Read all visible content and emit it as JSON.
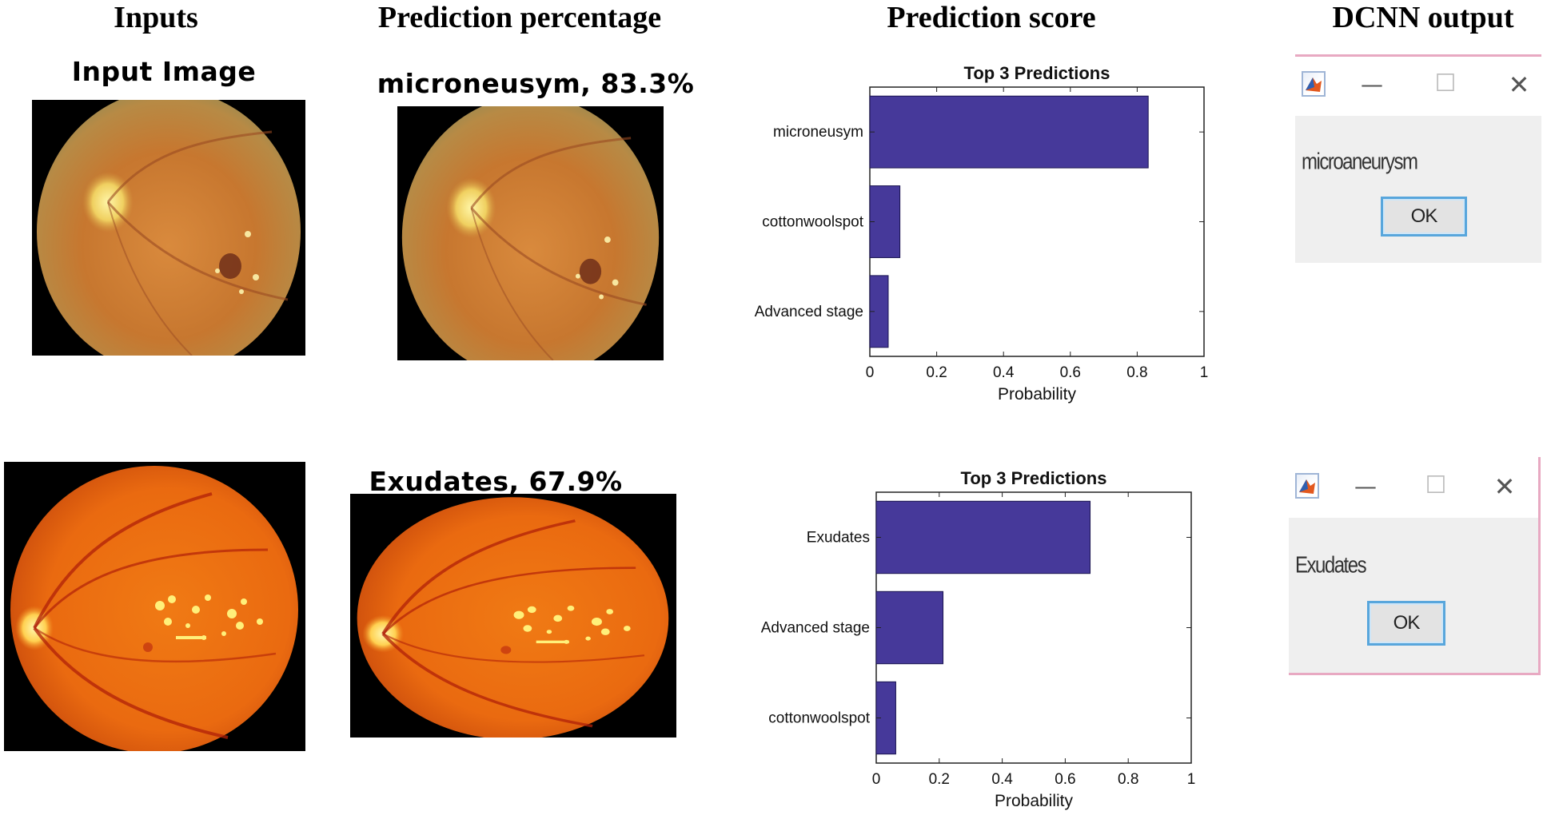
{
  "headers": {
    "inputs": "Inputs",
    "prediction_percentage": "Prediction percentage",
    "prediction_score": "Prediction score",
    "dcnn_output": "DCNN output"
  },
  "row1": {
    "input_title": "Input Image",
    "prediction_title": "microneusym, 83.3%",
    "dialog": {
      "message": "microaneurysm",
      "ok_label": "OK",
      "minimize_glyph": "—",
      "maximize_glyph": "☐",
      "close_glyph": "✕"
    }
  },
  "row2": {
    "prediction_title": "Exudates, 67.9%",
    "dialog": {
      "message": "Exudates",
      "ok_label": "OK",
      "minimize_glyph": "—",
      "maximize_glyph": "☐",
      "close_glyph": "✕"
    }
  },
  "chart_data": [
    {
      "type": "bar",
      "orientation": "horizontal",
      "title": "Top 3 Predictions",
      "categories": [
        "microneusym",
        "cottonwoolspot",
        "Advanced stage"
      ],
      "values": [
        0.833,
        0.09,
        0.055
      ],
      "xlabel": "Probability",
      "ylabel": "",
      "xlim": [
        0,
        1
      ],
      "xticks": [
        "0",
        "0.2",
        "0.4",
        "0.6",
        "0.8",
        "1"
      ],
      "bar_color": "#46399a"
    },
    {
      "type": "bar",
      "orientation": "horizontal",
      "title": "Top 3 Predictions",
      "categories": [
        "Exudates",
        "Advanced stage",
        "cottonwoolspot"
      ],
      "values": [
        0.679,
        0.212,
        0.062
      ],
      "xlabel": "Probability",
      "ylabel": "",
      "xlim": [
        0,
        1
      ],
      "xticks": [
        "0",
        "0.2",
        "0.4",
        "0.6",
        "0.8",
        "1"
      ],
      "bar_color": "#46399a"
    }
  ],
  "colors": {
    "bar": "#46399a",
    "dialog_bg": "#efefef",
    "ok_border": "#58a6dc",
    "dialog_accent": "#e8a9c2"
  },
  "icons": [
    "matlab-icon",
    "minimize-icon",
    "maximize-icon",
    "close-icon"
  ]
}
